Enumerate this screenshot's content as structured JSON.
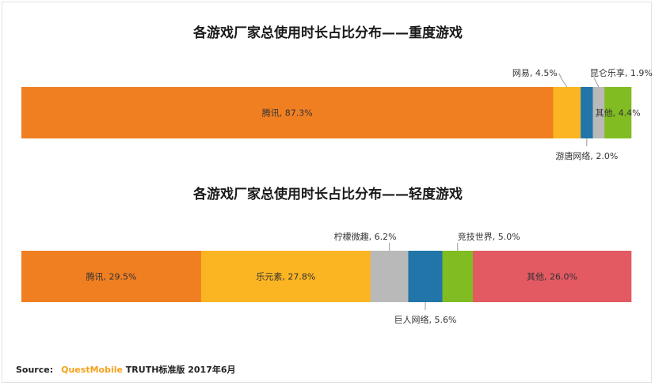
{
  "footer": {
    "source_label": "Source:",
    "brand": "QuestMobile",
    "text": "TRUTH标准版 2017年6月"
  },
  "chart_data": [
    {
      "type": "bar",
      "orientation": "horizontal-stacked-100",
      "title": "各游戏厂家总使用时长占比分布——重度游戏",
      "series": [
        {
          "name": "腾讯",
          "value": 87.3,
          "label": "腾讯, 87.3%",
          "color": "#f07f22",
          "label_position": "inside"
        },
        {
          "name": "网易",
          "value": 4.5,
          "label": "网易, 4.5%",
          "color": "#fbb522",
          "label_position": "above"
        },
        {
          "name": "游唐网络",
          "value": 2.0,
          "label": "游唐网络, 2.0%",
          "color": "#2175a8",
          "label_position": "below"
        },
        {
          "name": "昆仑乐享",
          "value": 1.9,
          "label": "昆仑乐享, 1.9%",
          "color": "#b9b9b9",
          "label_position": "above"
        },
        {
          "name": "其他",
          "value": 4.4,
          "label": "其他, 4.4%",
          "color": "#80bc22",
          "label_position": "inside"
        }
      ]
    },
    {
      "type": "bar",
      "orientation": "horizontal-stacked-100",
      "title": "各游戏厂家总使用时长占比分布——轻度游戏",
      "series": [
        {
          "name": "腾讯",
          "value": 29.5,
          "label": "腾讯, 29.5%",
          "color": "#f07f22",
          "label_position": "inside"
        },
        {
          "name": "乐元素",
          "value": 27.8,
          "label": "乐元素, 27.8%",
          "color": "#fbb522",
          "label_position": "inside"
        },
        {
          "name": "柠檬微趣",
          "value": 6.2,
          "label": "柠檬微趣, 6.2%",
          "color": "#b9b9b9",
          "label_position": "above"
        },
        {
          "name": "巨人网络",
          "value": 5.6,
          "label": "巨人网络, 5.6%",
          "color": "#2175a8",
          "label_position": "below"
        },
        {
          "name": "竞技世界",
          "value": 5.0,
          "label": "竞技世界, 5.0%",
          "color": "#80bc22",
          "label_position": "above"
        },
        {
          "name": "其他",
          "value": 26.0,
          "label": "其他, 26.0%",
          "color": "#e45a63",
          "label_position": "inside"
        }
      ]
    }
  ]
}
